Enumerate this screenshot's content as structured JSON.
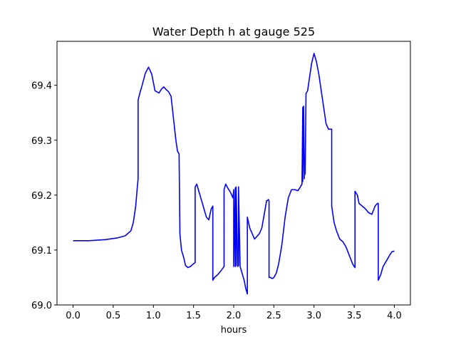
{
  "chart_data": {
    "type": "line",
    "title": "Water Depth h at gauge 525",
    "xlabel": "hours",
    "ylabel": "",
    "xlim": [
      -0.2,
      4.2
    ],
    "ylim": [
      69.0,
      69.48
    ],
    "xticks": [
      0.0,
      0.5,
      1.0,
      1.5,
      2.0,
      2.5,
      3.0,
      3.5,
      4.0
    ],
    "xtick_labels": [
      "0.0",
      "0.5",
      "1.0",
      "1.5",
      "2.0",
      "2.5",
      "3.0",
      "3.5",
      "4.0"
    ],
    "yticks": [
      69.0,
      69.1,
      69.2,
      69.3,
      69.4
    ],
    "ytick_labels": [
      "69.0",
      "69.1",
      "69.2",
      "69.3",
      "69.4"
    ],
    "grid": false,
    "series": [
      {
        "color": "#0000ff",
        "x": [
          0.0,
          0.2,
          0.4,
          0.55,
          0.65,
          0.72,
          0.75,
          0.78,
          0.8,
          0.81,
          0.81,
          0.83,
          0.86,
          0.9,
          0.94,
          0.98,
          1.02,
          1.07,
          1.1,
          1.13,
          1.16,
          1.19,
          1.22,
          1.25,
          1.28,
          1.3,
          1.32,
          1.33,
          1.33,
          1.35,
          1.38,
          1.4,
          1.43,
          1.46,
          1.5,
          1.52,
          1.52,
          1.54,
          1.57,
          1.6,
          1.63,
          1.66,
          1.69,
          1.72,
          1.74,
          1.74,
          1.76,
          1.8,
          1.84,
          1.88,
          1.88,
          1.9,
          1.93,
          1.96,
          1.99,
          2.0,
          2.0,
          2.02,
          2.02,
          2.03,
          2.03,
          2.05,
          2.05,
          2.06,
          2.06,
          2.08,
          2.1,
          2.13,
          2.15,
          2.17,
          2.17,
          2.2,
          2.23,
          2.26,
          2.29,
          2.32,
          2.35,
          2.38,
          2.41,
          2.42,
          2.43,
          2.44,
          2.44,
          2.46,
          2.48,
          2.5,
          2.53,
          2.56,
          2.6,
          2.64,
          2.68,
          2.72,
          2.76,
          2.8,
          2.83,
          2.85,
          2.86,
          2.86,
          2.87,
          2.88,
          2.88,
          2.89,
          2.9,
          2.9,
          2.92,
          2.95,
          2.97,
          3.0,
          3.03,
          3.06,
          3.09,
          3.12,
          3.15,
          3.18,
          3.2,
          3.22,
          3.22,
          3.25,
          3.28,
          3.32,
          3.36,
          3.4,
          3.44,
          3.48,
          3.5,
          3.51,
          3.51,
          3.54,
          3.56,
          3.6,
          3.64,
          3.68,
          3.72,
          3.76,
          3.79,
          3.8,
          3.8,
          3.83,
          3.86,
          3.9,
          3.94,
          3.97,
          4.0
        ],
        "y": [
          69.117,
          69.117,
          69.119,
          69.122,
          69.126,
          69.135,
          69.15,
          69.18,
          69.215,
          69.23,
          69.373,
          69.385,
          69.4,
          69.422,
          69.433,
          69.42,
          69.39,
          69.386,
          69.393,
          69.397,
          69.392,
          69.388,
          69.38,
          69.34,
          69.3,
          69.28,
          69.275,
          69.135,
          69.13,
          69.1,
          69.085,
          69.072,
          69.068,
          69.07,
          69.075,
          69.077,
          69.215,
          69.22,
          69.205,
          69.19,
          69.175,
          69.16,
          69.155,
          69.175,
          69.18,
          69.045,
          69.05,
          69.055,
          69.062,
          69.07,
          69.21,
          69.22,
          69.212,
          69.205,
          69.195,
          69.21,
          69.07,
          69.213,
          69.07,
          69.072,
          69.215,
          69.072,
          69.07,
          69.072,
          69.215,
          69.07,
          69.06,
          69.045,
          69.03,
          69.02,
          69.16,
          69.14,
          69.13,
          69.12,
          69.125,
          69.13,
          69.14,
          69.165,
          69.19,
          69.19,
          69.192,
          69.19,
          69.05,
          69.05,
          69.048,
          69.05,
          69.058,
          69.075,
          69.11,
          69.16,
          69.195,
          69.21,
          69.21,
          69.208,
          69.215,
          69.22,
          69.36,
          69.225,
          69.362,
          69.23,
          69.235,
          69.24,
          69.38,
          69.385,
          69.39,
          69.42,
          69.44,
          69.458,
          69.443,
          69.42,
          69.39,
          69.36,
          69.33,
          69.32,
          69.32,
          69.32,
          69.18,
          69.15,
          69.135,
          69.12,
          69.115,
          69.105,
          69.09,
          69.075,
          69.07,
          69.068,
          69.207,
          69.2,
          69.185,
          69.18,
          69.175,
          69.168,
          69.165,
          69.18,
          69.185,
          69.185,
          69.045,
          69.055,
          69.07,
          69.08,
          69.09,
          69.097,
          69.098
        ]
      }
    ]
  }
}
